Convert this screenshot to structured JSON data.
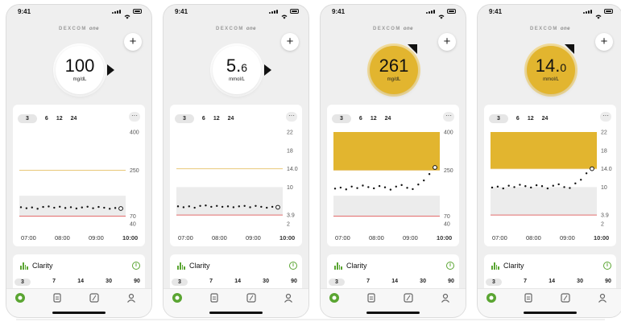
{
  "colors": {
    "high_fill": "#e2b52f",
    "target_upper": "#e8c878",
    "target_lower": "#e26b6b",
    "accent": "#5aa532"
  },
  "screens": [
    {
      "status_time": "9:41",
      "brand": {
        "name": "DEXCOM",
        "suffix": "one"
      },
      "reading": {
        "value": "100",
        "decimal": "",
        "unit": "mg/dL",
        "state": "normal",
        "trend": "steady-arrow-icon"
      },
      "time_ranges": [
        "3",
        "6",
        "12",
        "24"
      ],
      "selected_range": "3",
      "y_labels": [
        "400",
        "250",
        "70",
        "40"
      ],
      "x_labels": [
        "07:00",
        "08:00",
        "09:00",
        "10:00"
      ],
      "clarity": {
        "title": "Clarity",
        "ranges": [
          "3",
          "7",
          "14",
          "30",
          "90"
        ],
        "selected": "3"
      }
    },
    {
      "status_time": "9:41",
      "brand": {
        "name": "DEXCOM",
        "suffix": "one"
      },
      "reading": {
        "value": "5.",
        "decimal": "6",
        "unit": "mmol/L",
        "state": "normal",
        "trend": "steady-arrow-icon"
      },
      "time_ranges": [
        "3",
        "6",
        "12",
        "24"
      ],
      "selected_range": "3",
      "y_labels": [
        "22",
        "18",
        "14.0",
        "10",
        "3.9",
        "2"
      ],
      "x_labels": [
        "07:00",
        "08:00",
        "09:00",
        "10:00"
      ],
      "clarity": {
        "title": "Clarity",
        "ranges": [
          "3",
          "7",
          "14",
          "30",
          "90"
        ],
        "selected": "3"
      }
    },
    {
      "status_time": "9:41",
      "brand": {
        "name": "DEXCOM",
        "suffix": "one"
      },
      "reading": {
        "value": "261",
        "decimal": "",
        "unit": "mg/dL",
        "state": "high",
        "trend": "rising-arrow-icon"
      },
      "time_ranges": [
        "3",
        "6",
        "12",
        "24"
      ],
      "selected_range": "3",
      "y_labels": [
        "400",
        "250",
        "70",
        "40"
      ],
      "x_labels": [
        "07:00",
        "08:00",
        "09:00",
        "10:00"
      ],
      "clarity": {
        "title": "Clarity",
        "ranges": [
          "3",
          "7",
          "14",
          "30",
          "90"
        ],
        "selected": "3"
      }
    },
    {
      "status_time": "9:41",
      "brand": {
        "name": "DEXCOM",
        "suffix": "one"
      },
      "reading": {
        "value": "14.",
        "decimal": "0",
        "unit": "mmol/L",
        "state": "high",
        "trend": "rising-arrow-icon"
      },
      "time_ranges": [
        "3",
        "6",
        "12",
        "24"
      ],
      "selected_range": "3",
      "y_labels": [
        "22",
        "18",
        "14.0",
        "10",
        "3.9",
        "2"
      ],
      "x_labels": [
        "07:00",
        "08:00",
        "09:00",
        "10:00"
      ],
      "clarity": {
        "title": "Clarity",
        "ranges": [
          "3",
          "7",
          "14",
          "30",
          "90"
        ],
        "selected": "3"
      }
    }
  ],
  "chart_data": [
    {
      "type": "scatter",
      "x": [
        "07:00",
        "07:10",
        "07:20",
        "07:30",
        "07:40",
        "07:50",
        "08:00",
        "08:10",
        "08:20",
        "08:30",
        "08:40",
        "08:50",
        "09:00",
        "09:10",
        "09:20",
        "09:30",
        "09:40",
        "09:50",
        "10:00"
      ],
      "y": [
        105,
        101,
        104,
        99,
        106,
        108,
        103,
        107,
        102,
        105,
        100,
        104,
        107,
        101,
        106,
        103,
        99,
        102,
        100
      ],
      "ylim": [
        40,
        400
      ],
      "y_ticks": [
        400,
        250,
        70,
        40
      ],
      "target_range": [
        70,
        250
      ],
      "series": [
        {
          "values": [
            105,
            101,
            104,
            99,
            106,
            108,
            103,
            107,
            102,
            105,
            100,
            104,
            107,
            101,
            106,
            103,
            99,
            102,
            100
          ]
        }
      ]
    },
    {
      "type": "scatter",
      "x": [
        "07:00",
        "07:10",
        "07:20",
        "07:30",
        "07:40",
        "07:50",
        "08:00",
        "08:10",
        "08:20",
        "08:30",
        "08:40",
        "08:50",
        "09:00",
        "09:10",
        "09:20",
        "09:30",
        "09:40",
        "09:50",
        "10:00"
      ],
      "y": [
        5.8,
        5.6,
        5.8,
        5.5,
        5.9,
        6.0,
        5.7,
        5.9,
        5.7,
        5.8,
        5.6,
        5.8,
        5.9,
        5.6,
        5.9,
        5.7,
        5.5,
        5.7,
        5.6
      ],
      "ylim": [
        2,
        22
      ],
      "y_ticks": [
        22,
        18,
        14.0,
        10,
        3.9,
        2
      ],
      "target_range": [
        3.9,
        14.0
      ],
      "series": [
        {
          "values": [
            5.8,
            5.6,
            5.8,
            5.5,
            5.9,
            6.0,
            5.7,
            5.9,
            5.7,
            5.8,
            5.6,
            5.8,
            5.9,
            5.6,
            5.9,
            5.7,
            5.5,
            5.7,
            5.6
          ]
        }
      ]
    },
    {
      "type": "scatter",
      "x": [
        "07:00",
        "07:10",
        "07:20",
        "07:30",
        "07:40",
        "07:50",
        "08:00",
        "08:10",
        "08:20",
        "08:30",
        "08:40",
        "08:50",
        "09:00",
        "09:10",
        "09:20",
        "09:30",
        "09:40",
        "09:50",
        "10:00"
      ],
      "y": [
        178,
        182,
        175,
        186,
        180,
        190,
        184,
        179,
        188,
        183,
        174,
        186,
        192,
        181,
        176,
        194,
        210,
        235,
        261
      ],
      "ylim": [
        40,
        400
      ],
      "y_ticks": [
        400,
        250,
        70,
        40
      ],
      "target_range": [
        70,
        250
      ],
      "series": [
        {
          "values": [
            178,
            182,
            175,
            186,
            180,
            190,
            184,
            179,
            188,
            183,
            174,
            186,
            192,
            181,
            176,
            194,
            210,
            235,
            261
          ]
        }
      ]
    },
    {
      "type": "scatter",
      "x": [
        "07:00",
        "07:10",
        "07:20",
        "07:30",
        "07:40",
        "07:50",
        "08:00",
        "08:10",
        "08:20",
        "08:30",
        "08:40",
        "08:50",
        "09:00",
        "09:10",
        "09:20",
        "09:30",
        "09:40",
        "09:50",
        "10:00"
      ],
      "y": [
        9.9,
        10.1,
        9.7,
        10.3,
        10.0,
        10.5,
        10.2,
        9.9,
        10.4,
        10.2,
        9.7,
        10.3,
        10.6,
        10.0,
        9.8,
        10.8,
        11.6,
        13.0,
        14.0
      ],
      "ylim": [
        2,
        22
      ],
      "y_ticks": [
        22,
        18,
        14.0,
        10,
        3.9,
        2
      ],
      "target_range": [
        3.9,
        14.0
      ],
      "series": [
        {
          "values": [
            9.9,
            10.1,
            9.7,
            10.3,
            10.0,
            10.5,
            10.2,
            9.9,
            10.4,
            10.2,
            9.7,
            10.3,
            10.6,
            10.0,
            9.8,
            10.8,
            11.6,
            13.0,
            14.0
          ]
        }
      ]
    }
  ]
}
